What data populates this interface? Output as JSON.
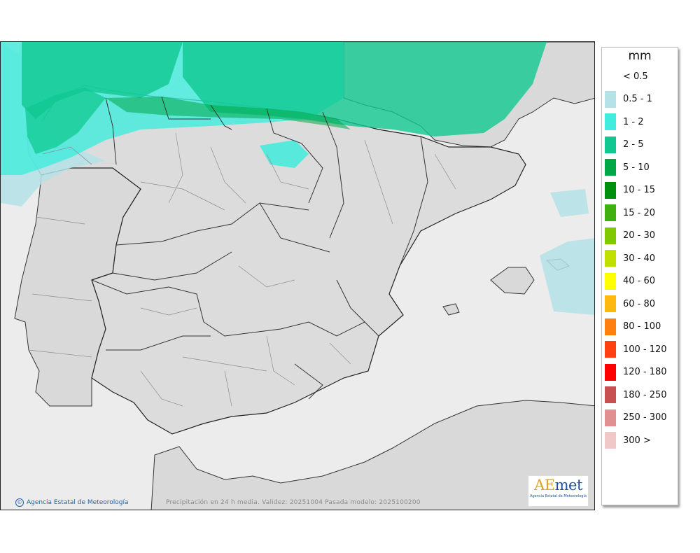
{
  "legend": {
    "unit": "mm",
    "items": [
      {
        "label": "< 0.5",
        "color": "#ffffff"
      },
      {
        "label": "0.5 - 1",
        "color": "#b4e2e6"
      },
      {
        "label": "1 - 2",
        "color": "#40ecdc"
      },
      {
        "label": "2 - 5",
        "color": "#10c890"
      },
      {
        "label": "5 - 10",
        "color": "#00a848"
      },
      {
        "label": "10 - 15",
        "color": "#009010"
      },
      {
        "label": "15 - 20",
        "color": "#40b010"
      },
      {
        "label": "20 - 30",
        "color": "#80c800"
      },
      {
        "label": "30 - 40",
        "color": "#c0e000"
      },
      {
        "label": "40 - 60",
        "color": "#ffff00"
      },
      {
        "label": "60 - 80",
        "color": "#ffb810"
      },
      {
        "label": "80 - 100",
        "color": "#ff8010"
      },
      {
        "label": "100 - 120",
        "color": "#ff4010"
      },
      {
        "label": "120 - 180",
        "color": "#ff0000"
      },
      {
        "label": "180 - 250",
        "color": "#c85050"
      },
      {
        "label": "250 - 300",
        "color": "#e09090"
      },
      {
        "label": "300 >",
        "color": "#f0c8c8"
      }
    ]
  },
  "footer": {
    "credit": "Agencia Estatal de Meteorología",
    "caption": "Precipitación en 24 h media. Validez: 20251004 Pasada modelo: 2025100200"
  },
  "logo": {
    "wordmark_a": "AE",
    "wordmark_b": "met",
    "subtitle": "Agencia Estatal de Meteorología"
  }
}
